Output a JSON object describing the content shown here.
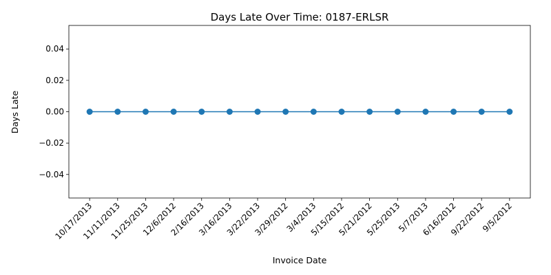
{
  "chart_data": {
    "type": "line",
    "title": "Days Late Over Time: 0187-ERLSR",
    "xlabel": "Invoice Date",
    "ylabel": "Days Late",
    "categories": [
      "10/17/2013",
      "11/11/2013",
      "11/25/2013",
      "12/6/2012",
      "2/16/2013",
      "3/16/2013",
      "3/22/2013",
      "3/29/2012",
      "3/4/2013",
      "5/15/2012",
      "5/21/2012",
      "5/25/2013",
      "5/7/2013",
      "6/16/2012",
      "9/22/2012",
      "9/5/2012"
    ],
    "series": [
      {
        "values": [
          0,
          0,
          0,
          0,
          0,
          0,
          0,
          0,
          0,
          0,
          0,
          0,
          0,
          0,
          0,
          0
        ]
      }
    ],
    "ylim": [
      -0.055,
      0.055
    ],
    "yticks": [
      -0.04,
      -0.02,
      0.0,
      0.02,
      0.04
    ],
    "ytick_labels": [
      "−0.04",
      "−0.02",
      "0.00",
      "0.02",
      "0.04"
    ],
    "grid": false,
    "x_tick_rotation_deg": 45,
    "colors": {
      "series": "#1f77b4",
      "axis": "#000000"
    }
  }
}
